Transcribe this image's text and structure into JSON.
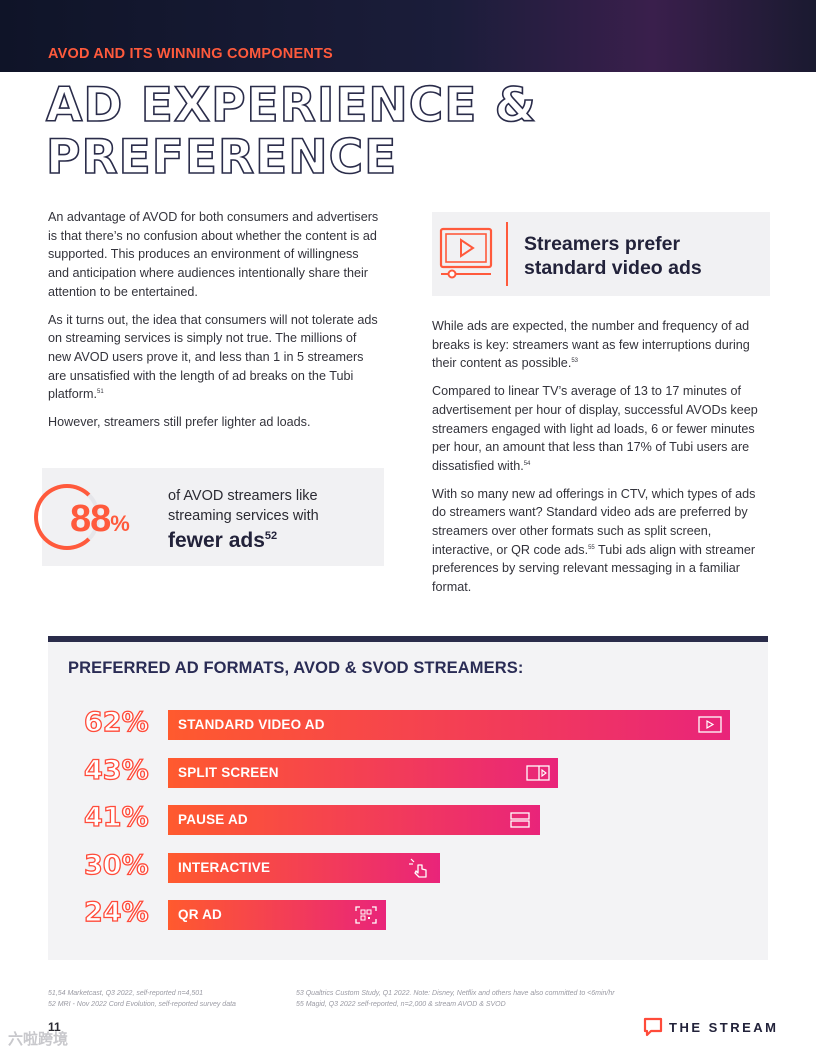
{
  "header": {
    "section_label": "AVOD AND ITS WINNING COMPONENTS",
    "title_line1": "AD EXPERIENCE &",
    "title_line2": "PREFERENCE"
  },
  "left_column": {
    "p1": "An advantage of AVOD for both consumers and advertisers is that there’s no confusion about whether the content is ad supported. This produces an environment of willingness and anticipation where audiences intentionally share their attention to be entertained.",
    "p2": "As it turns out, the idea that consumers will not tolerate ads on streaming services is simply not true. The millions of new AVOD users prove it, and less than 1 in 5 streamers are unsatisfied with the length of ad breaks on the Tubi platform.",
    "p2_ref": "51",
    "p3": "However, streamers still prefer lighter ad loads."
  },
  "stat": {
    "number": "88",
    "percent_sign": "%",
    "value_percent": 88,
    "text_line": "of AVOD streamers like streaming services with",
    "emphasis": "fewer ads",
    "ref": "52"
  },
  "callout": {
    "icon": "video-play-icon",
    "title": "Streamers prefer standard video ads"
  },
  "right_column": {
    "p1": "While ads are expected, the number and frequency of ad breaks is key: streamers want as few interruptions during their content as possible.",
    "p1_ref": "53",
    "p2": "Compared to linear TV’s average of 13 to 17 minutes of advertisement per hour of display, successful AVODs keep streamers engaged with light ad loads, 6 or fewer minutes per hour, an amount that less than 17% of Tubi users are dissatisfied with.",
    "p2_ref": "54",
    "p3": "With so many new ad offerings in CTV, which types of ads do streamers want? Standard video ads are preferred by streamers over other formats such as split screen, interactive, or QR code ads.",
    "p3_ref": "55",
    "p3_tail": " Tubi ads align with streamer preferences by serving relevant messaging in a familiar format."
  },
  "chart_data": {
    "type": "bar",
    "orientation": "horizontal",
    "title": "PREFERRED AD FORMATS, AVOD & SVOD STREAMERS:",
    "categories": [
      "STANDARD VIDEO AD",
      "SPLIT SCREEN",
      "PAUSE AD",
      "INTERACTIVE",
      "QR AD"
    ],
    "values": [
      62,
      43,
      41,
      30,
      24
    ],
    "value_labels": [
      "62%",
      "43%",
      "41%",
      "30%",
      "24%"
    ],
    "icons": [
      "video-play-icon",
      "split-screen-icon",
      "pause-ad-icon",
      "pointer-hand-icon",
      "qr-code-icon"
    ],
    "unit": "%",
    "xlim": [
      0,
      62
    ]
  },
  "colors": {
    "accent": "#ff5a3c",
    "navy": "#2a2c4a",
    "bar_start": "#ff5a2e",
    "bar_end": "#e9247a"
  },
  "footnotes": {
    "left_1": "51,54 Marketcast, Q3 2022, self-reported n=4,501",
    "left_2": "52 MRI - Nov 2022 Cord Evolution, self-reported survey data",
    "right_1": "53 Qualtrics Custom Study, Q1 2022. Note: Disney, Netflix and others have also committed to <6min/hr",
    "right_2": "55 Magid, Q3 2022 self-reported, n=2,000 & stream AVOD & SVOD"
  },
  "footer": {
    "page_number": "11",
    "logo_text": "THE STREAM",
    "watermark": "六啦跨境"
  }
}
